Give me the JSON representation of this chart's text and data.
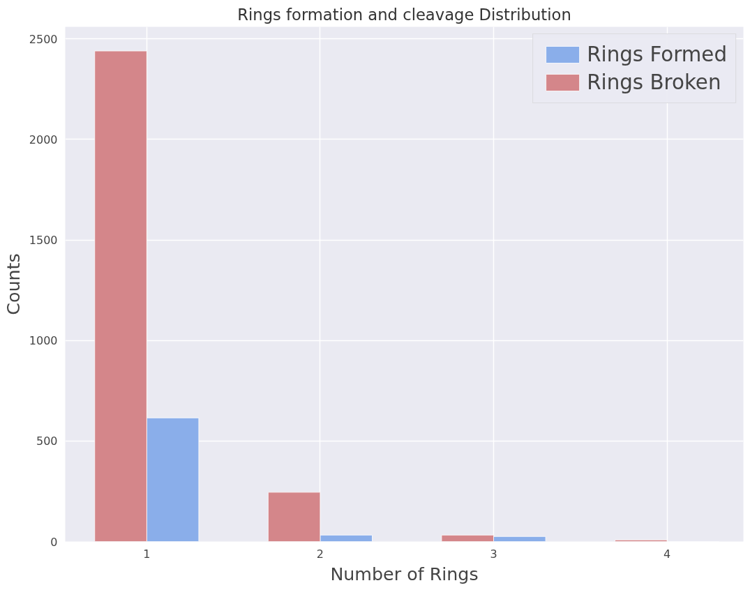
{
  "chart_data": {
    "type": "bar",
    "title": "Rings formation and cleavage Distribution",
    "xlabel": "Number of Rings",
    "ylabel": "Counts",
    "categories": [
      "1",
      "2",
      "3",
      "4"
    ],
    "series": [
      {
        "name": "Rings Formed",
        "color": "#8aaeea",
        "values": [
          615,
          32,
          25,
          null
        ]
      },
      {
        "name": "Rings Broken",
        "color": "#d4868a",
        "values": [
          2440,
          245,
          32,
          8
        ]
      }
    ],
    "ylim": [
      0,
      2560
    ],
    "yticks": [
      0,
      500,
      1000,
      1500,
      2000,
      2500
    ],
    "grid": true,
    "legend": "top right"
  }
}
